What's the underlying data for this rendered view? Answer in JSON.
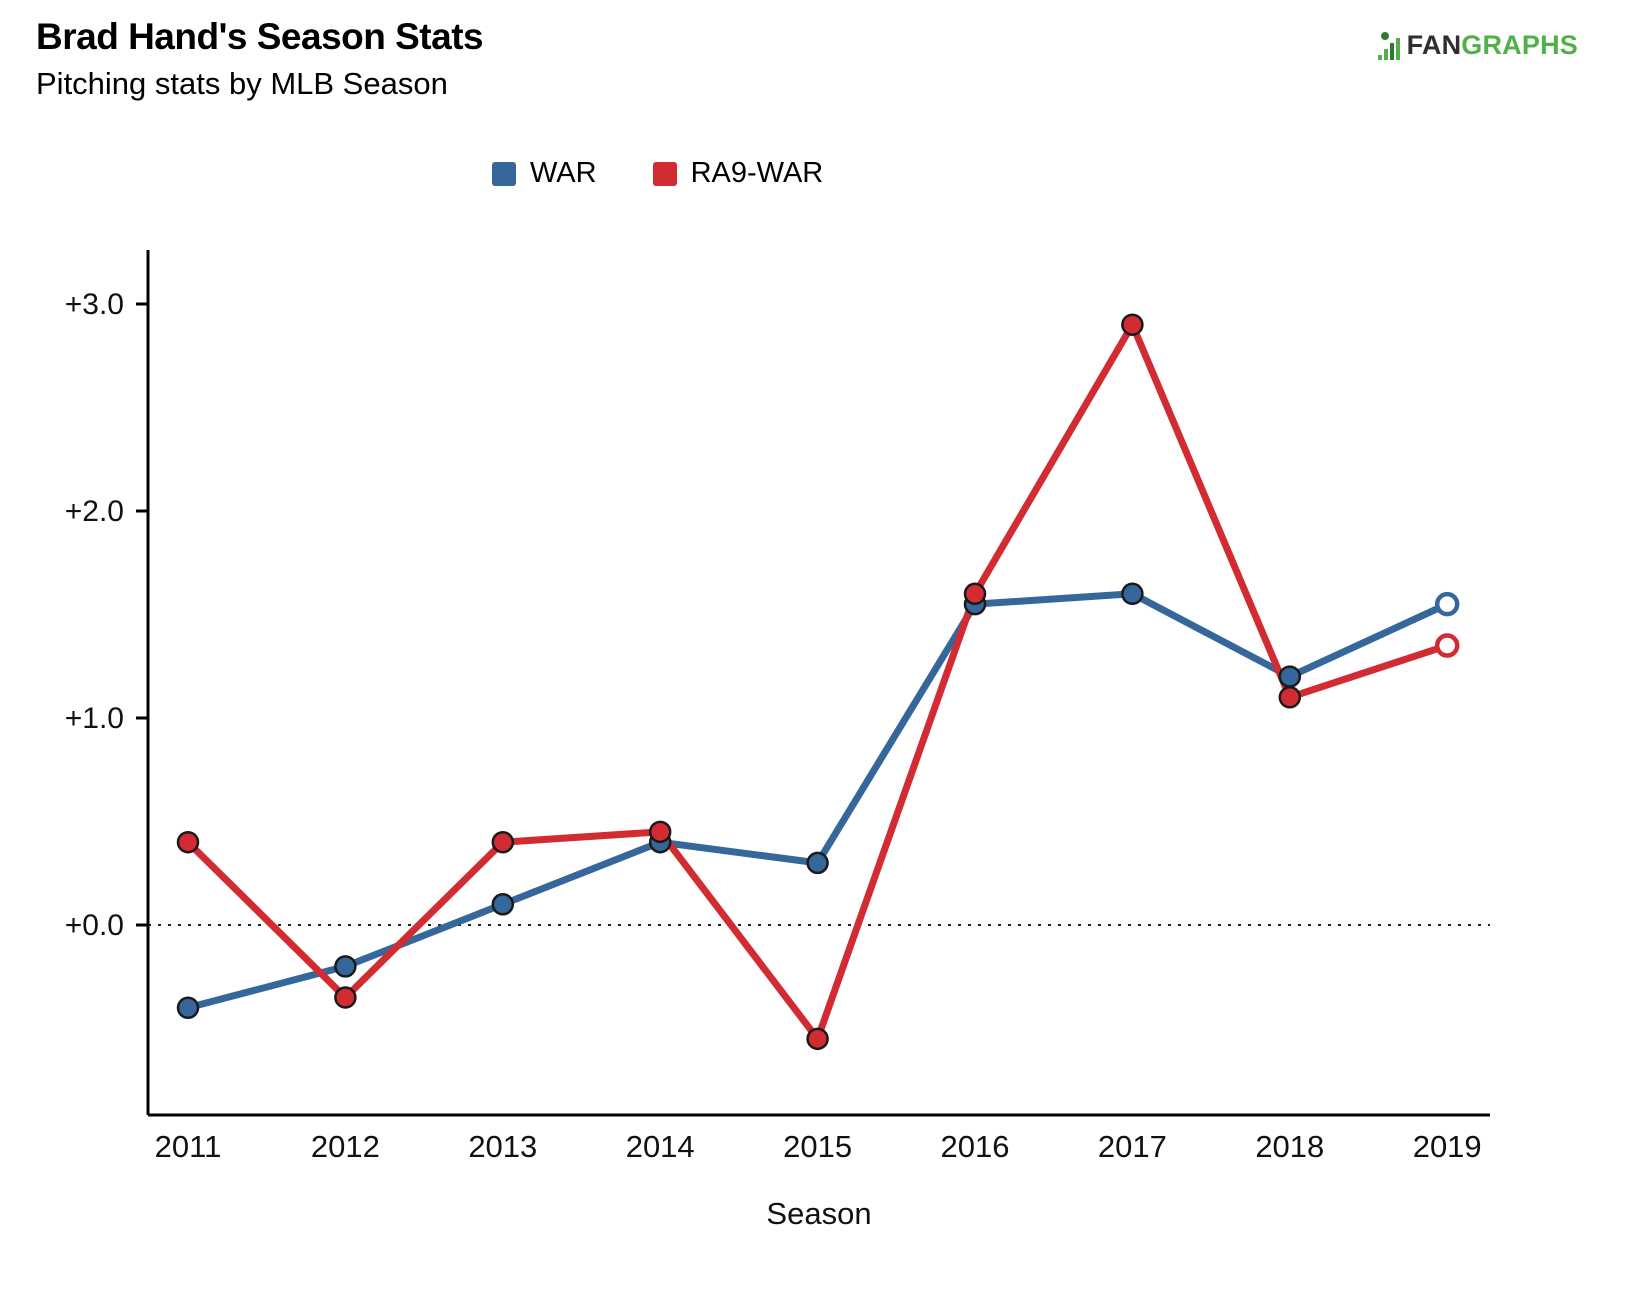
{
  "header": {
    "title": "Brad Hand's Season Stats",
    "subtitle": "Pitching stats by MLB Season",
    "logo": {
      "fan": "FAN",
      "graphs": "GRAPHS"
    }
  },
  "chart_data": {
    "type": "line",
    "title": "Brad Hand's Season Stats",
    "subtitle": "Pitching stats by MLB Season",
    "categories": [
      "2011",
      "2012",
      "2013",
      "2014",
      "2015",
      "2016",
      "2017",
      "2018",
      "2019"
    ],
    "series": [
      {
        "name": "WAR",
        "color": "#36679B",
        "values": [
          -0.4,
          -0.2,
          0.1,
          0.4,
          0.3,
          1.55,
          1.6,
          1.2,
          1.55
        ],
        "last_point_open": true
      },
      {
        "name": "RA9-WAR",
        "color": "#D22B32",
        "values": [
          0.4,
          -0.35,
          0.4,
          0.45,
          -0.55,
          1.6,
          2.9,
          1.1,
          1.35
        ],
        "last_point_open": true
      }
    ],
    "xlabel": "Season",
    "ylabel": "",
    "yticks": [
      {
        "value": 0,
        "label": "+0.0"
      },
      {
        "value": 1,
        "label": "+1.0"
      },
      {
        "value": 2,
        "label": "+2.0"
      },
      {
        "value": 3,
        "label": "+3.0"
      }
    ],
    "ylim": [
      -0.9,
      3.3
    ],
    "zero_line": true,
    "grid": false,
    "legend_position": "top"
  }
}
